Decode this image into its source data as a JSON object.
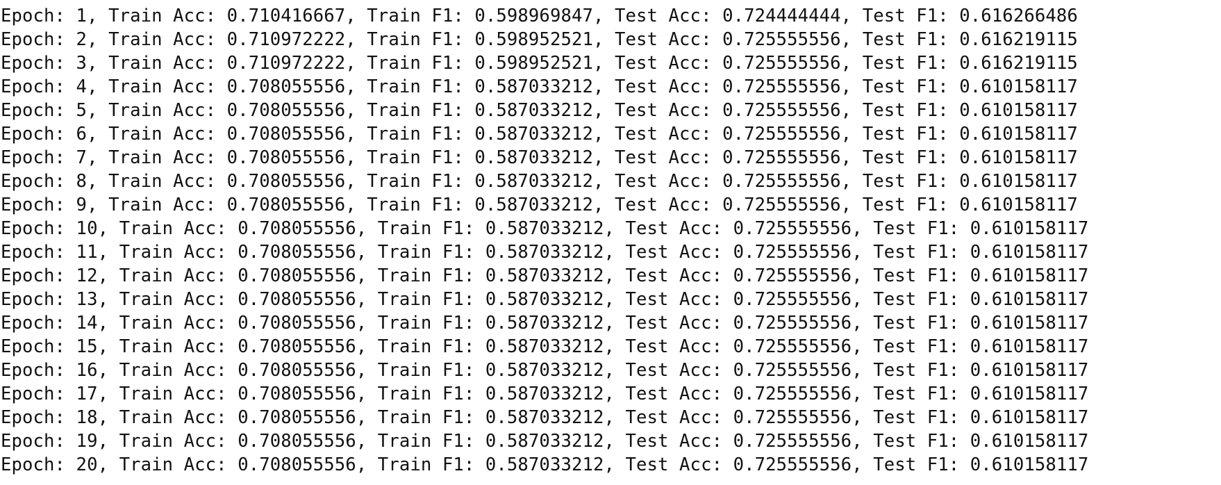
{
  "output": {
    "lines": [
      "Epoch: 1, Train Acc: 0.710416667, Train F1: 0.598969847, Test Acc: 0.724444444, Test F1: 0.616266486",
      "Epoch: 2, Train Acc: 0.710972222, Train F1: 0.598952521, Test Acc: 0.725555556, Test F1: 0.616219115",
      "Epoch: 3, Train Acc: 0.710972222, Train F1: 0.598952521, Test Acc: 0.725555556, Test F1: 0.616219115",
      "Epoch: 4, Train Acc: 0.708055556, Train F1: 0.587033212, Test Acc: 0.725555556, Test F1: 0.610158117",
      "Epoch: 5, Train Acc: 0.708055556, Train F1: 0.587033212, Test Acc: 0.725555556, Test F1: 0.610158117",
      "Epoch: 6, Train Acc: 0.708055556, Train F1: 0.587033212, Test Acc: 0.725555556, Test F1: 0.610158117",
      "Epoch: 7, Train Acc: 0.708055556, Train F1: 0.587033212, Test Acc: 0.725555556, Test F1: 0.610158117",
      "Epoch: 8, Train Acc: 0.708055556, Train F1: 0.587033212, Test Acc: 0.725555556, Test F1: 0.610158117",
      "Epoch: 9, Train Acc: 0.708055556, Train F1: 0.587033212, Test Acc: 0.725555556, Test F1: 0.610158117",
      "Epoch: 10, Train Acc: 0.708055556, Train F1: 0.587033212, Test Acc: 0.725555556, Test F1: 0.610158117",
      "Epoch: 11, Train Acc: 0.708055556, Train F1: 0.587033212, Test Acc: 0.725555556, Test F1: 0.610158117",
      "Epoch: 12, Train Acc: 0.708055556, Train F1: 0.587033212, Test Acc: 0.725555556, Test F1: 0.610158117",
      "Epoch: 13, Train Acc: 0.708055556, Train F1: 0.587033212, Test Acc: 0.725555556, Test F1: 0.610158117",
      "Epoch: 14, Train Acc: 0.708055556, Train F1: 0.587033212, Test Acc: 0.725555556, Test F1: 0.610158117",
      "Epoch: 15, Train Acc: 0.708055556, Train F1: 0.587033212, Test Acc: 0.725555556, Test F1: 0.610158117",
      "Epoch: 16, Train Acc: 0.708055556, Train F1: 0.587033212, Test Acc: 0.725555556, Test F1: 0.610158117",
      "Epoch: 17, Train Acc: 0.708055556, Train F1: 0.587033212, Test Acc: 0.725555556, Test F1: 0.610158117",
      "Epoch: 18, Train Acc: 0.708055556, Train F1: 0.587033212, Test Acc: 0.725555556, Test F1: 0.610158117",
      "Epoch: 19, Train Acc: 0.708055556, Train F1: 0.587033212, Test Acc: 0.725555556, Test F1: 0.610158117",
      "Epoch: 20, Train Acc: 0.708055556, Train F1: 0.587033212, Test Acc: 0.725555556, Test F1: 0.610158117"
    ]
  },
  "colors": {
    "background": "#ffffff",
    "text": "#111111"
  }
}
